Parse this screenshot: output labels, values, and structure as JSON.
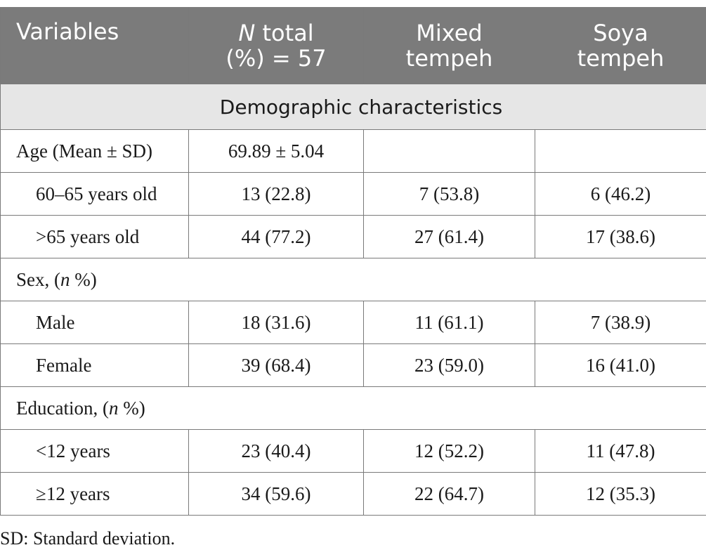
{
  "header": {
    "col1": "Variables",
    "col2_italic": "N",
    "col2_rest": " total",
    "col2_line2": "(%) = 57",
    "col3_line1": "Mixed",
    "col3_line2": "tempeh",
    "col4_line1": "Soya",
    "col4_line2": "tempeh"
  },
  "section_title": "Demographic characteristics",
  "rows": {
    "age": {
      "label": "Age (Mean ± SD)",
      "total": "69.89 ± 5.04",
      "mixed": "",
      "soya": ""
    },
    "age_60_65": {
      "label": "60–65 years old",
      "total": "13 (22.8)",
      "mixed": "7 (53.8)",
      "soya": "6 (46.2)"
    },
    "age_65plus": {
      "label": ">65 years old",
      "total": "44 (77.2)",
      "mixed": "27 (61.4)",
      "soya": "17 (38.6)"
    },
    "sex": {
      "label_pre": "Sex, (",
      "label_it": "n",
      "label_post": " %)"
    },
    "male": {
      "label": "Male",
      "total": "18 (31.6)",
      "mixed": "11 (61.1)",
      "soya": "7 (38.9)"
    },
    "female": {
      "label": "Female",
      "total": "39 (68.4)",
      "mixed": "23 (59.0)",
      "soya": "16 (41.0)"
    },
    "education": {
      "label_pre": "Education, (",
      "label_it": "n",
      "label_post": " %)"
    },
    "edu_lt12": {
      "label": "<12 years",
      "total": "23 (40.4)",
      "mixed": "12 (52.2)",
      "soya": "11 (47.8)"
    },
    "edu_ge12": {
      "label": "≥12 years",
      "total": "34 (59.6)",
      "mixed": "22 (64.7)",
      "soya": "12 (35.3)"
    }
  },
  "footnote": "SD: Standard deviation."
}
